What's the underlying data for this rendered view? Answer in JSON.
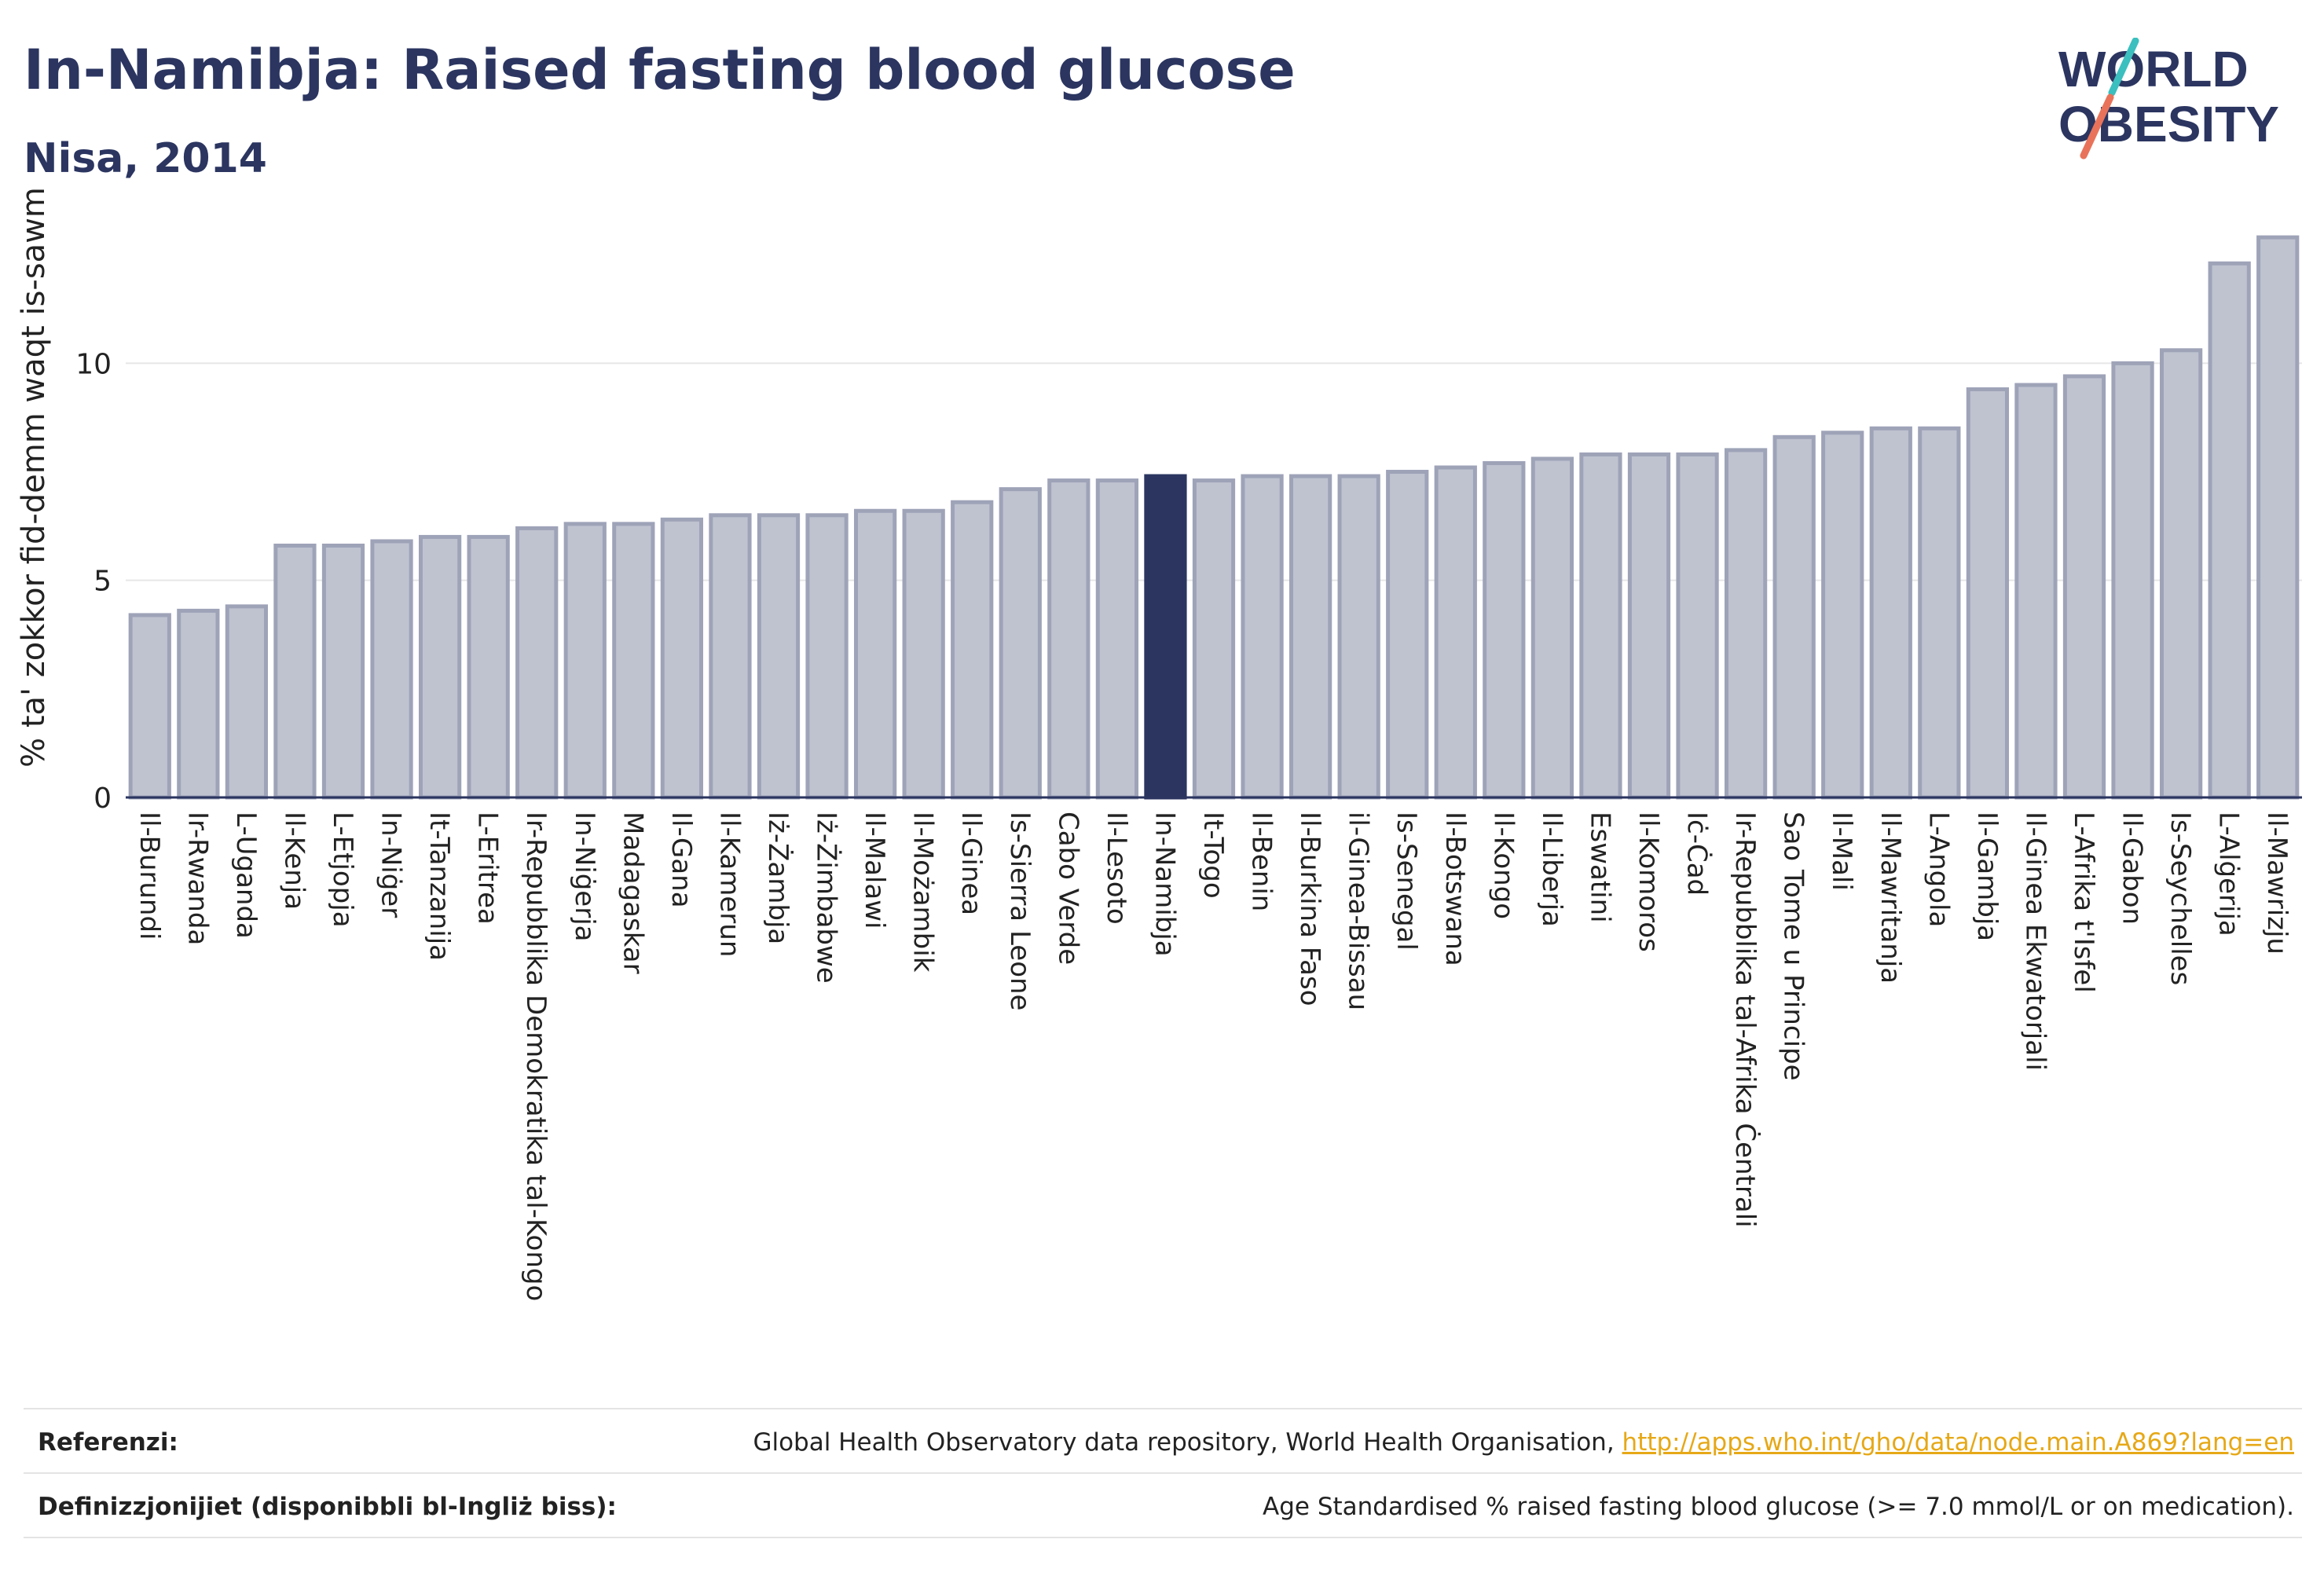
{
  "header": {
    "title": "In-Namibja: Raised fasting blood glucose",
    "subtitle": "Nisa, 2014"
  },
  "logo": {
    "line1": "WORLD",
    "line2": "OBESITY",
    "accent_colors": [
      "#3bbfbf",
      "#e8735a"
    ]
  },
  "footer": {
    "references_label": "Referenzi:",
    "references_text": "Global Health Observatory data repository, World Health Organisation,",
    "references_link": "http://apps.who.int/gho/data/node.main.A869?lang=en",
    "definitions_label": "Definizzjonijiet (disponibbli bl-Ingliż biss):",
    "definitions_text": "Age Standardised % raised fasting blood glucose (>= 7.0 mmol/L or on medication)."
  },
  "colors": {
    "bar": "#bfc3d0",
    "bar_edge": "#9ea3b8",
    "highlight": "#2b3560",
    "text": "#2b3560"
  },
  "chart_data": {
    "type": "bar",
    "title": "In-Namibja: Raised fasting blood glucose",
    "subtitle": "Nisa, 2014",
    "xlabel": "",
    "ylabel": "% ta' zokkor fid-demm waqt is-sawm",
    "ylim": [
      0,
      13.3
    ],
    "yticks": [
      0,
      5,
      10
    ],
    "grid": true,
    "highlight": "In-Namibja",
    "categories": [
      "Il-Burundi",
      "Ir-Rwanda",
      "L-Uganda",
      "Il-Kenja",
      "L-Etjopja",
      "In-Niġer",
      "It-Tanzanija",
      "L-Eritrea",
      "Ir-Repubblika Demokratika tal-Kongo",
      "In-Niġerja",
      "Madagaskar",
      "Il-Gana",
      "Il-Kamerun",
      "Iż-Żambja",
      "Iż-Żimbabwe",
      "Il-Malawi",
      "Il-Możambik",
      "Il-Ginea",
      "Is-Sierra Leone",
      "Cabo Verde",
      "Il-Lesoto",
      "In-Namibja",
      "It-Togo",
      "Il-Benin",
      "Il-Burkina Faso",
      "il-Ginea-Bissau",
      "Is-Senegal",
      "Il-Botswana",
      "Il-Kongo",
      "Il-Liberja",
      "Eswatini",
      "Il-Komoros",
      "Iċ-Ċad",
      "Ir-Repubblika tal-Afrika Ċentrali",
      "Sao Tome u Principe",
      "Il-Mali",
      "Il-Mawritanja",
      "L-Angola",
      "Il-Gambja",
      "Il-Ginea Ekwatorjali",
      "L-Afrika t'Isfel",
      "Il-Gabon",
      "Is-Seychelles",
      "L-Alġerija",
      "Il-Mawrizju"
    ],
    "values": [
      4.2,
      4.3,
      4.4,
      5.8,
      5.8,
      5.9,
      6.0,
      6.0,
      6.2,
      6.3,
      6.3,
      6.4,
      6.5,
      6.5,
      6.5,
      6.6,
      6.6,
      6.8,
      7.1,
      7.3,
      7.3,
      7.4,
      7.3,
      7.4,
      7.4,
      7.4,
      7.5,
      7.6,
      7.7,
      7.8,
      7.9,
      7.9,
      7.9,
      8.0,
      8.3,
      8.4,
      8.5,
      8.5,
      9.4,
      9.5,
      9.7,
      10.0,
      10.3,
      12.3,
      12.9
    ]
  }
}
